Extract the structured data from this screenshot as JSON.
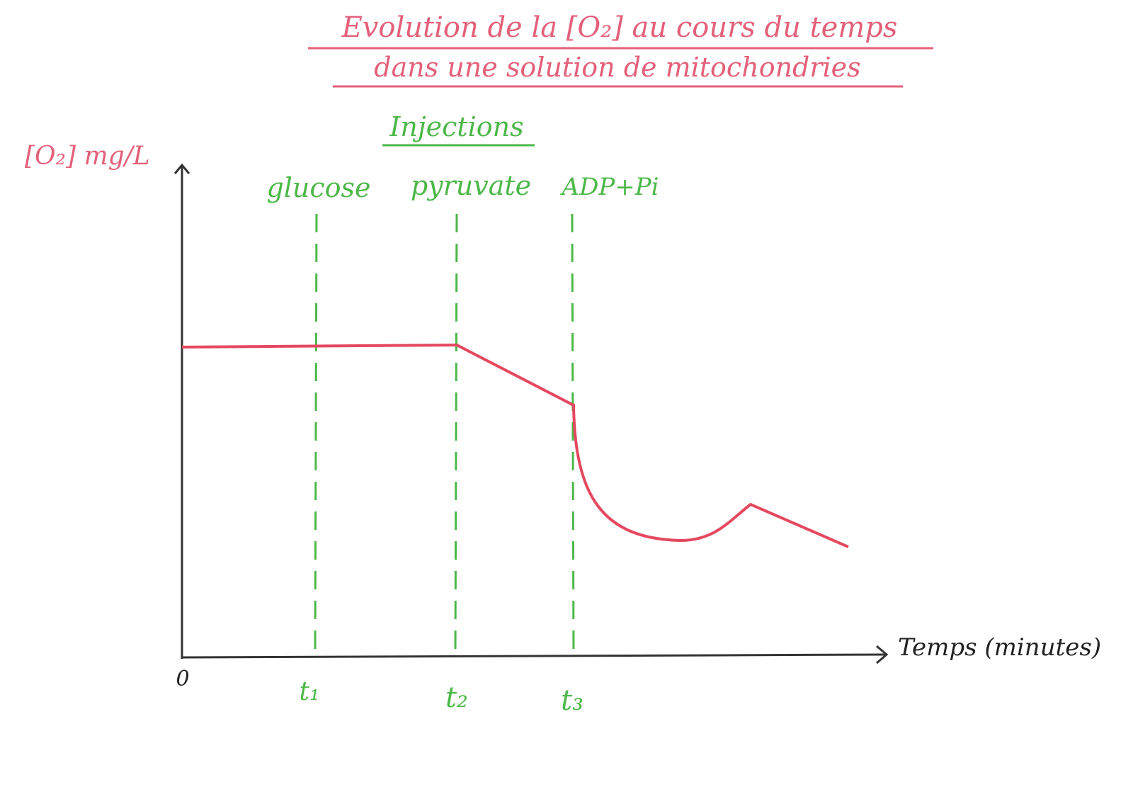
{
  "header": {
    "title": [
      "Evolution de la [O₂] au cours du temps",
      "dans une solution de mitochondries"
    ]
  },
  "axes": {
    "y_label": "[O₂] mg/L",
    "x_label": "Temps (minutes)",
    "origin": "0"
  },
  "injections": {
    "title": "Injections",
    "items": [
      {
        "label": "glucose",
        "time": "t₁"
      },
      {
        "label": "pyruvate",
        "time": "t₂"
      },
      {
        "label": "ADP+Pi",
        "time": "t₃"
      }
    ]
  }
}
